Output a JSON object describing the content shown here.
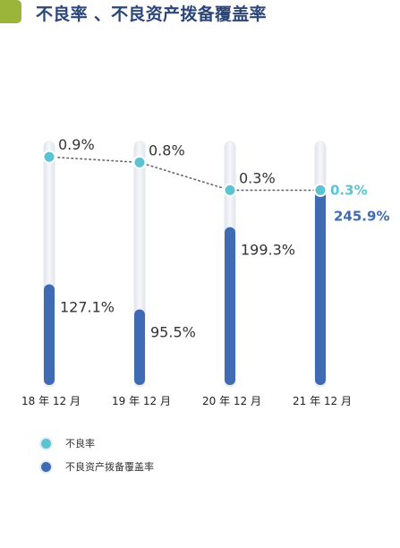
{
  "header": {
    "title": "不良率 、不良资产拨备覆盖率",
    "accent_color": "#9bb43a",
    "title_color": "#2d4678"
  },
  "chart_data": {
    "type": "bar",
    "title": "不良率 、不良资产拨备覆盖率",
    "categories": [
      "18 年 12 月",
      "19 年 12 月",
      "20 年 12 月",
      "21 年 12 月"
    ],
    "series": [
      {
        "name": "不良率",
        "kind": "line",
        "values": [
          0.9,
          0.8,
          0.3,
          0.3
        ],
        "labels": [
          "0.9%",
          "0.8%",
          "0.3%",
          "0.3%"
        ],
        "color": "#5bc4d0"
      },
      {
        "name": "不良资产拨备覆盖率",
        "kind": "bar",
        "values": [
          127.1,
          95.5,
          199.3,
          245.9
        ],
        "labels": [
          "127.1%",
          "95.5%",
          "199.3%",
          "245.9%"
        ],
        "color": "#3f6bb5"
      }
    ],
    "bar_ylim": [
      0,
      300
    ],
    "line_ylim": [
      0,
      1.3
    ],
    "highlight_last": true,
    "grid": false,
    "legend_position": "bottom-left"
  },
  "legend": {
    "items": [
      {
        "label": "不良率",
        "color": "#5bc4d0"
      },
      {
        "label": "不良资产拨备覆盖率",
        "color": "#3f6bb5"
      }
    ]
  }
}
